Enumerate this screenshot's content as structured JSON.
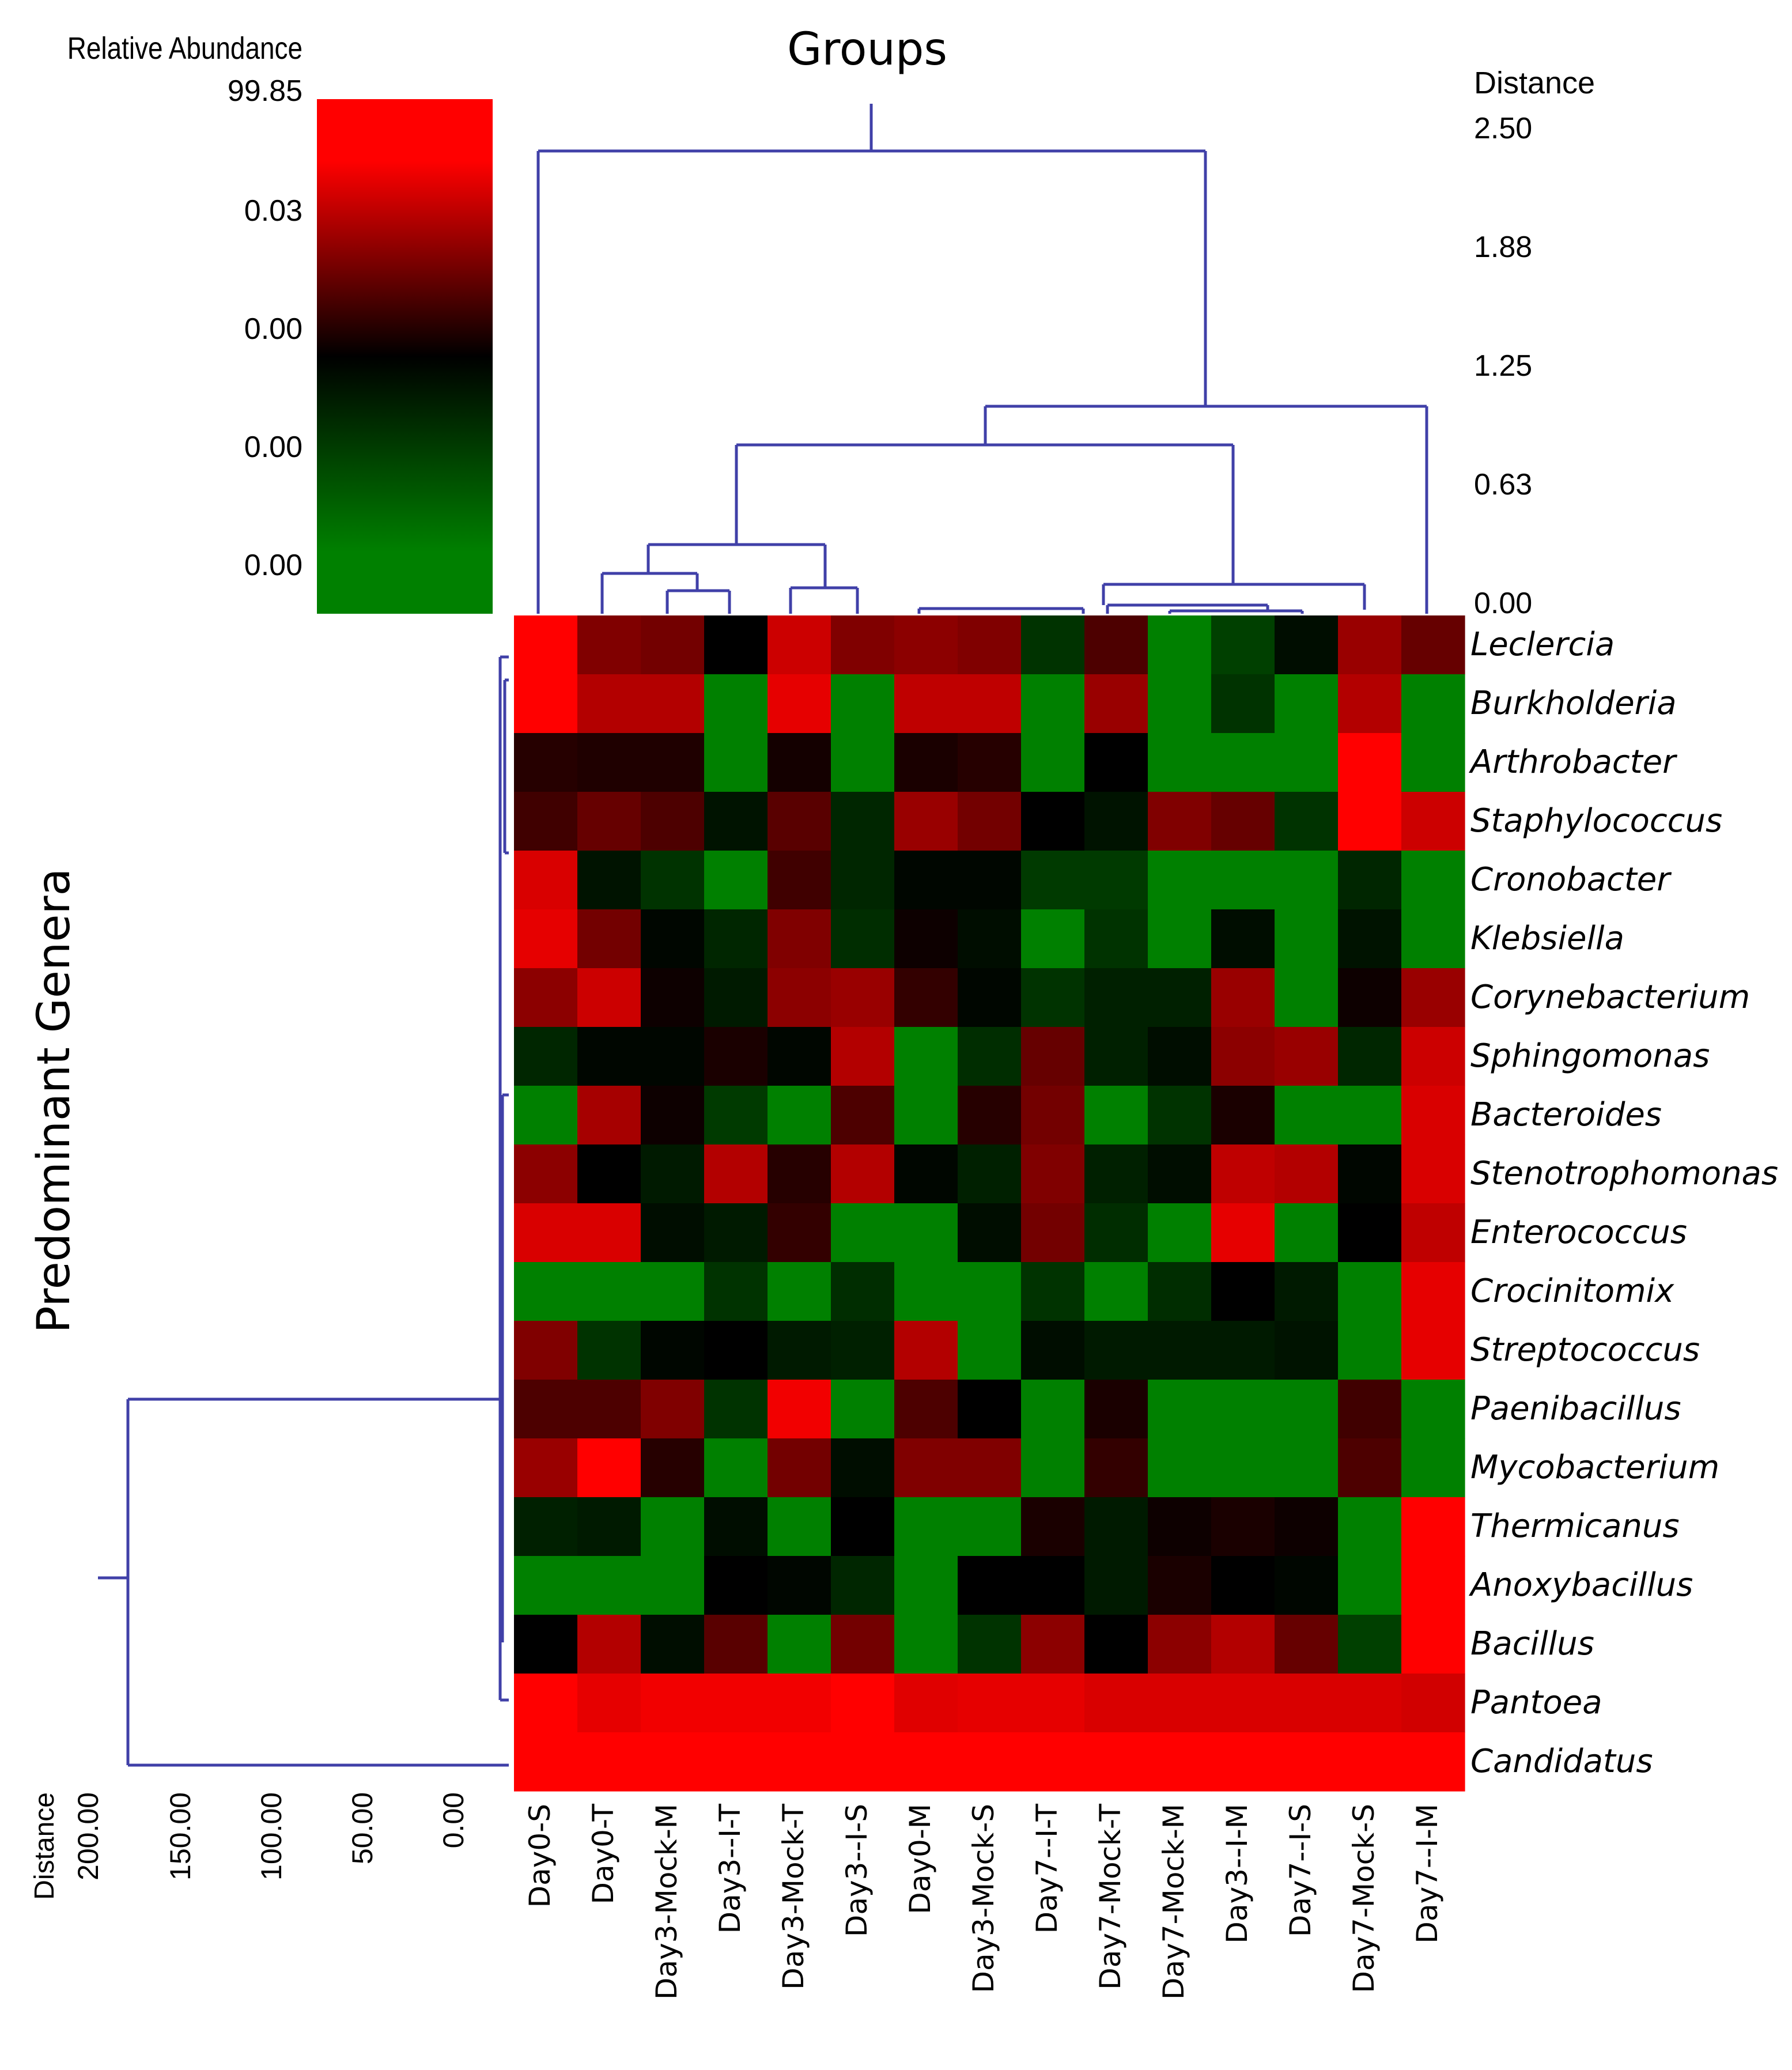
{
  "chart_data": {
    "type": "heatmap",
    "title": "Groups",
    "row_axis_title": "Predominant Genera",
    "colorbar": {
      "title": "Relative Abundance",
      "tick_labels": [
        "99.85",
        "0.03",
        "0.00",
        "0.00",
        "0.00"
      ],
      "colors": [
        "#ff0000",
        "#000000",
        "#008000"
      ]
    },
    "top_distance": {
      "title": "Distance",
      "tick_labels": [
        "2.50",
        "1.88",
        "1.25",
        "0.63",
        "0.00"
      ]
    },
    "left_distance": {
      "title": "Distance",
      "tick_labels": [
        "200.00",
        "150.00",
        "100.00",
        "50.00",
        "0.00"
      ]
    },
    "columns": [
      "Day0-S",
      "Day0-T",
      "Day3-Mock-M",
      "Day3--I-T",
      "Day3-Mock-T",
      "Day3--I-S",
      "Day0-M",
      "Day3-Mock-S",
      "Day7--I-T",
      "Day7-Mock-T",
      "Day7-Mock-M",
      "Day3--I-M",
      "Day7--I-S",
      "Day7-Mock-S",
      "Day7--I-M"
    ],
    "rows": [
      "Leclercia",
      "Burkholderia",
      "Arthrobacter",
      "Staphylococcus",
      "Cronobacter",
      "Klebsiella",
      "Corynebacterium",
      "Sphingomonas",
      "Bacteroides",
      "Stenotrophomonas",
      "Enterococcus",
      "Crocinitomix",
      "Streptococcus",
      "Paenibacillus",
      "Mycobacterium",
      "Thermicanus",
      "Anoxybacillus",
      "Bacillus",
      "Pantoea",
      "Candidatus"
    ],
    "values_scale": "color level from -1 (green) through 0 (black) to 1 (red)",
    "values": [
      [
        1.0,
        0.5,
        0.45,
        0.0,
        0.8,
        0.5,
        0.55,
        0.5,
        -0.4,
        0.3,
        -1.0,
        -0.5,
        -0.1,
        0.6,
        0.4
      ],
      [
        1.0,
        0.7,
        0.7,
        -1.0,
        0.9,
        -1.0,
        0.75,
        0.75,
        -1.0,
        0.6,
        -1.0,
        -0.4,
        -1.0,
        0.7,
        -1.0
      ],
      [
        0.15,
        0.12,
        0.12,
        -1.0,
        0.08,
        -1.0,
        0.1,
        0.15,
        -1.0,
        0.0,
        -1.0,
        -1.0,
        -1.0,
        1.0,
        -1.0
      ],
      [
        0.25,
        0.4,
        0.3,
        -0.15,
        0.35,
        -0.3,
        0.6,
        0.45,
        0.0,
        -0.15,
        0.5,
        0.4,
        -0.4,
        1.0,
        0.8
      ],
      [
        0.85,
        -0.15,
        -0.4,
        -1.0,
        0.25,
        -0.3,
        -0.05,
        -0.05,
        -0.45,
        -0.45,
        -1.0,
        -1.0,
        -1.0,
        -0.3,
        -1.0
      ],
      [
        0.9,
        0.45,
        -0.05,
        -0.3,
        0.5,
        -0.35,
        0.05,
        -0.1,
        -1.0,
        -0.4,
        -1.0,
        -0.1,
        -1.0,
        -0.15,
        -1.0
      ],
      [
        0.55,
        0.8,
        0.05,
        -0.2,
        0.55,
        0.6,
        0.2,
        -0.05,
        -0.4,
        -0.25,
        -0.25,
        0.6,
        -1.0,
        0.05,
        0.6
      ],
      [
        -0.3,
        -0.05,
        -0.05,
        0.1,
        -0.05,
        0.7,
        -1.0,
        -0.35,
        0.4,
        -0.25,
        -0.1,
        0.55,
        0.6,
        -0.3,
        0.8
      ],
      [
        -1.0,
        0.65,
        0.05,
        -0.45,
        -1.0,
        0.3,
        -1.0,
        0.15,
        0.45,
        -1.0,
        -0.4,
        0.1,
        -1.0,
        -1.0,
        0.85
      ],
      [
        0.55,
        0.0,
        -0.2,
        0.7,
        0.15,
        0.7,
        -0.05,
        -0.25,
        0.5,
        -0.25,
        -0.1,
        0.75,
        0.7,
        -0.05,
        0.85
      ],
      [
        0.85,
        0.85,
        -0.1,
        -0.2,
        0.2,
        -1.0,
        -1.0,
        -0.1,
        0.45,
        -0.35,
        -1.0,
        0.9,
        -1.0,
        0.0,
        0.75
      ],
      [
        -1.0,
        -1.0,
        -1.0,
        -0.4,
        -1.0,
        -0.35,
        -1.0,
        -1.0,
        -0.4,
        -1.0,
        -0.35,
        0.0,
        -0.2,
        -1.0,
        0.9
      ],
      [
        0.5,
        -0.4,
        -0.05,
        0.0,
        -0.2,
        -0.25,
        0.7,
        -1.0,
        -0.1,
        -0.2,
        -0.2,
        -0.2,
        -0.15,
        -1.0,
        0.9
      ],
      [
        0.3,
        0.3,
        0.5,
        -0.4,
        0.95,
        -1.0,
        0.3,
        0.0,
        -1.0,
        0.1,
        -1.0,
        -1.0,
        -1.0,
        0.25,
        -1.0
      ],
      [
        0.6,
        1.0,
        0.15,
        -1.0,
        0.45,
        -0.1,
        0.5,
        0.5,
        -1.0,
        0.2,
        -1.0,
        -1.0,
        -1.0,
        0.3,
        -1.0
      ],
      [
        -0.25,
        -0.2,
        -1.0,
        -0.1,
        -1.0,
        0.0,
        -1.0,
        -1.0,
        0.1,
        -0.2,
        0.05,
        0.1,
        0.05,
        -1.0,
        1.0
      ],
      [
        -1.0,
        -1.0,
        -1.0,
        0.0,
        -0.05,
        -0.3,
        -1.0,
        0.0,
        0.0,
        -0.2,
        0.1,
        0.0,
        -0.05,
        -1.0,
        1.0
      ],
      [
        0.0,
        0.7,
        -0.1,
        0.35,
        -1.0,
        0.45,
        -1.0,
        -0.4,
        0.55,
        0.0,
        0.55,
        0.7,
        0.4,
        -0.5,
        1.0
      ],
      [
        1.0,
        0.9,
        0.95,
        0.95,
        0.95,
        1.0,
        0.88,
        0.9,
        0.9,
        0.85,
        0.85,
        0.85,
        0.85,
        0.85,
        0.82
      ],
      [
        1.0,
        1.0,
        1.0,
        1.0,
        1.0,
        1.0,
        1.0,
        1.0,
        1.0,
        1.0,
        1.0,
        1.0,
        1.0,
        1.0,
        1.0
      ]
    ]
  }
}
